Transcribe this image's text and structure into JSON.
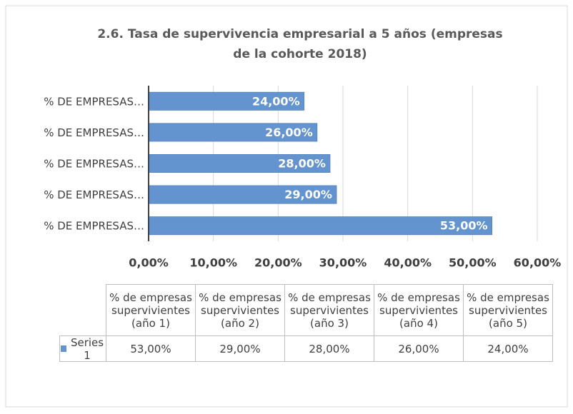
{
  "chart_data": {
    "type": "barh",
    "title": "2.6. Tasa de supervivencia empresarial a 5 años (empresas de la cohorte 2018)",
    "categories": [
      "% de empresas supervivientes (año 1)",
      "% de empresas supervivientes (año 2)",
      "% de empresas supervivientes (año 3)",
      "% de empresas supervivientes (año 4)",
      "% de empresas supervivientes (año 5)"
    ],
    "category_axis_labels": [
      "% DE EMPRESAS…",
      "% DE EMPRESAS…",
      "% DE EMPRESAS…",
      "% DE EMPRESAS…",
      "% DE EMPRESAS…"
    ],
    "series": [
      {
        "name": "Series1",
        "color": "#6494d0",
        "values": [
          53,
          29,
          28,
          26,
          24
        ],
        "value_labels": [
          "53,00%",
          "29,00%",
          "28,00%",
          "26,00%",
          "24,00%"
        ]
      }
    ],
    "xlim": [
      0,
      60
    ],
    "xticks": [
      {
        "value": 0,
        "label": "0,00%"
      },
      {
        "value": 10,
        "label": "10,00%"
      },
      {
        "value": 20,
        "label": "20,00%"
      },
      {
        "value": 30,
        "label": "30,00%"
      },
      {
        "value": 40,
        "label": "40,00%"
      },
      {
        "value": 50,
        "label": "50,00%"
      },
      {
        "value": 60,
        "label": "60,00%"
      }
    ],
    "grid": true,
    "data_table": true
  }
}
